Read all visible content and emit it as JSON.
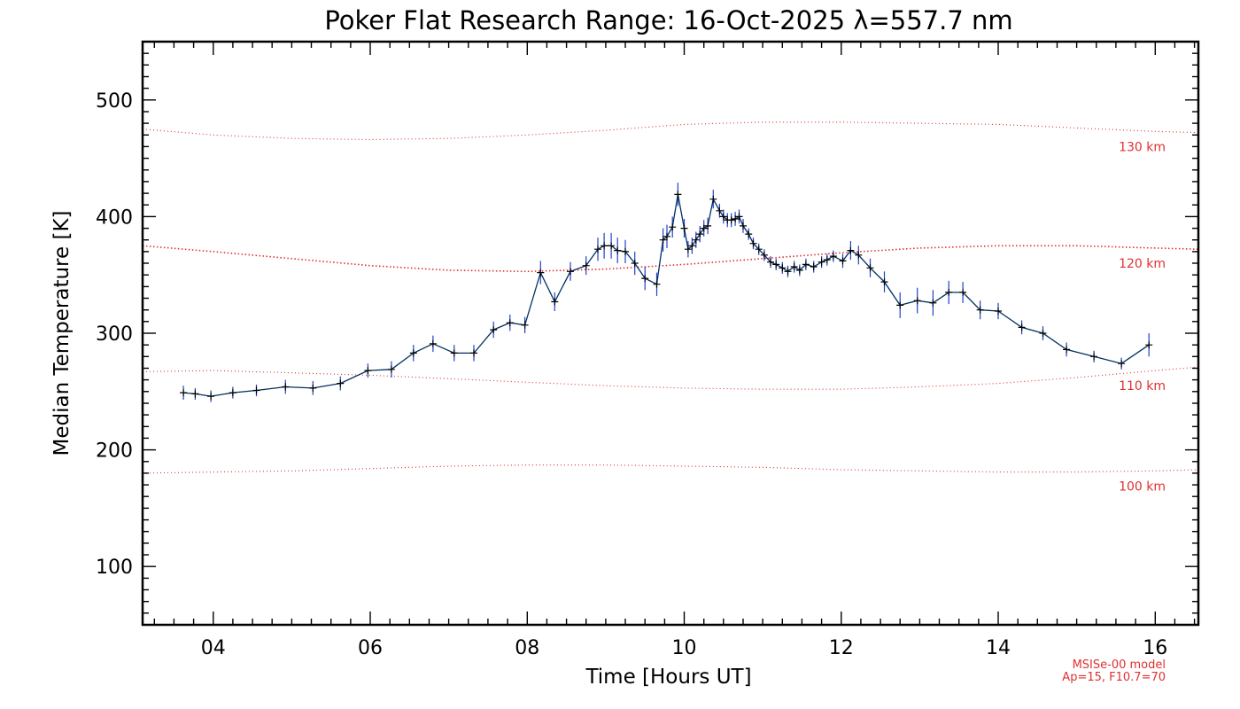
{
  "chart_data": {
    "type": "line",
    "title": "Poker Flat Research Range: 16-Oct-2025 λ=557.7 nm",
    "xlabel": "Time [Hours UT]",
    "ylabel": "Median Temperature [K]",
    "xlim": [
      3.1,
      16.55
    ],
    "ylim": [
      50,
      550
    ],
    "xticks": [
      4,
      6,
      8,
      10,
      12,
      14,
      16
    ],
    "xtick_labels": [
      "04",
      "06",
      "08",
      "10",
      "12",
      "14",
      "16"
    ],
    "yticks": [
      100,
      200,
      300,
      400,
      500
    ],
    "ytick_labels": [
      "100",
      "200",
      "300",
      "400",
      "500"
    ],
    "grid": false,
    "series": [
      {
        "name": "Median Temperature",
        "color": "#003060",
        "error_color": "#2040d0",
        "x": [
          3.62,
          3.77,
          3.97,
          4.25,
          4.55,
          4.92,
          5.27,
          5.62,
          5.97,
          6.27,
          6.55,
          6.8,
          7.07,
          7.32,
          7.57,
          7.78,
          7.97,
          8.17,
          8.35,
          8.55,
          8.75,
          8.9,
          8.98,
          9.07,
          9.15,
          9.25,
          9.37,
          9.5,
          9.65,
          9.73,
          9.78,
          9.85,
          9.92,
          10.0,
          10.05,
          10.1,
          10.15,
          10.2,
          10.25,
          10.3,
          10.37,
          10.45,
          10.5,
          10.55,
          10.6,
          10.65,
          10.7,
          10.75,
          10.82,
          10.88,
          10.95,
          11.02,
          11.1,
          11.17,
          11.25,
          11.32,
          11.4,
          11.47,
          11.55,
          11.65,
          11.75,
          11.82,
          11.9,
          12.02,
          12.12,
          12.22,
          12.37,
          12.55,
          12.75,
          12.97,
          13.17,
          13.37,
          13.55,
          13.77,
          14.0,
          14.3,
          14.57,
          14.87,
          15.22,
          15.57,
          15.92
        ],
        "values": [
          249,
          248,
          246,
          249,
          251,
          254,
          253,
          257,
          268,
          269,
          283,
          291,
          283,
          283,
          303,
          309,
          307,
          352,
          327,
          353,
          358,
          372,
          375,
          375,
          371,
          370,
          360,
          347,
          342,
          380,
          383,
          391,
          419,
          390,
          372,
          375,
          380,
          385,
          390,
          392,
          415,
          405,
          400,
          397,
          397,
          398,
          400,
          392,
          385,
          377,
          372,
          367,
          361,
          359,
          356,
          353,
          357,
          354,
          359,
          357,
          361,
          363,
          366,
          362,
          371,
          367,
          356,
          344,
          324,
          328,
          326,
          335,
          335,
          320,
          319,
          305,
          300,
          286,
          280,
          274,
          290
        ],
        "errors": [
          6,
          5,
          5,
          5,
          5,
          6,
          6,
          6,
          6,
          7,
          7,
          7,
          7,
          7,
          7,
          7,
          7,
          10,
          8,
          8,
          8,
          10,
          11,
          11,
          11,
          10,
          10,
          10,
          10,
          10,
          10,
          9,
          10,
          8,
          7,
          7,
          7,
          7,
          7,
          7,
          8,
          6,
          6,
          6,
          6,
          6,
          6,
          6,
          5,
          5,
          5,
          5,
          5,
          5,
          5,
          5,
          5,
          5,
          5,
          5,
          5,
          5,
          5,
          6,
          8,
          8,
          8,
          9,
          11,
          11,
          11,
          10,
          9,
          8,
          7,
          6,
          6,
          6,
          5,
          5,
          10
        ]
      }
    ],
    "model_curves": [
      {
        "label": "130 km",
        "color": "#e03030",
        "x": [
          3.1,
          4.0,
          5.0,
          6.0,
          7.0,
          8.0,
          9.0,
          10.0,
          11.0,
          12.0,
          13.0,
          14.0,
          15.0,
          16.0,
          16.55
        ],
        "values": [
          475,
          470,
          467,
          466,
          467,
          470,
          474,
          479,
          481,
          481,
          480,
          479,
          476,
          473,
          472
        ]
      },
      {
        "label": "120 km",
        "color": "#e03030",
        "x": [
          3.1,
          4.0,
          5.0,
          6.0,
          7.0,
          8.0,
          9.0,
          10.0,
          11.0,
          12.0,
          13.0,
          14.0,
          15.0,
          16.0,
          16.55
        ],
        "values": [
          375,
          370,
          364,
          358,
          354,
          353,
          355,
          359,
          364,
          369,
          373,
          375,
          375,
          373,
          372
        ]
      },
      {
        "label": "110 km",
        "color": "#e03030",
        "x": [
          3.1,
          4.0,
          5.0,
          6.0,
          7.0,
          8.0,
          9.0,
          10.0,
          11.0,
          12.0,
          13.0,
          14.0,
          15.0,
          16.0,
          16.55
        ],
        "values": [
          267,
          268,
          266,
          264,
          261,
          258,
          255,
          253,
          252,
          252,
          254,
          257,
          262,
          268,
          271
        ]
      },
      {
        "label": "100 km",
        "color": "#e03030",
        "x": [
          3.1,
          4.0,
          5.0,
          6.0,
          7.0,
          8.0,
          9.0,
          10.0,
          11.0,
          12.0,
          13.0,
          14.0,
          15.0,
          16.0,
          16.55
        ],
        "values": [
          180,
          181,
          182,
          184,
          186,
          187,
          187,
          186,
          185,
          183,
          182,
          181,
          181,
          182,
          183
        ]
      }
    ],
    "annotations": [
      "MSISe-00 model",
      "Ap=15, F10.7=70"
    ]
  }
}
